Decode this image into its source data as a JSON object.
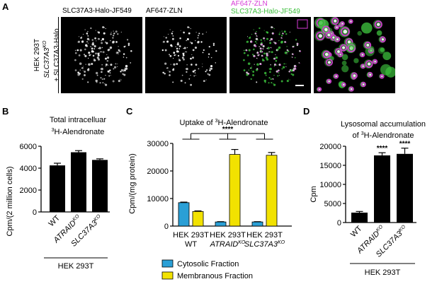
{
  "panelA": {
    "letter": "A",
    "row_label_lines": [
      "HEK 293T",
      "SLC37A3",
      "KO",
      "+ SLC37A3-Halo"
    ],
    "images": [
      {
        "label": "SLC37A3-Halo-JF549",
        "color": "#000000"
      },
      {
        "label": "AF647-ZLN",
        "color": "#000000"
      },
      {
        "label_top": "AF647-ZLN",
        "label_bottom": "SLC37A3-Halo-JF549",
        "color_top": "#d63ad6",
        "color_bottom": "#3cbf3c"
      },
      {
        "label": "",
        "color": "#000000"
      }
    ],
    "colors": {
      "green": "#3cbf3c",
      "magenta": "#d63ad6"
    }
  },
  "panelB": {
    "letter": "B",
    "title_line1": "Total intracelluar",
    "title_line2_pre": "3",
    "title_line2": "H-Alendronate",
    "ylabel": "Cpm/(2 million cells)",
    "yticks": [
      "0",
      "2000",
      "4000",
      "6000"
    ],
    "xlabels": [
      {
        "base": "WT",
        "sup": "",
        "italic": false
      },
      {
        "base": "ATRAID",
        "sup": "KO",
        "italic": true
      },
      {
        "base": "SLC37A3",
        "sup": "KO",
        "italic": true
      }
    ],
    "group_label": "HEK 293T"
  },
  "panelC": {
    "letter": "C",
    "title_pre": "Uptake of ",
    "title_sup": "3",
    "title": "H-Alendronate",
    "ylabel": "Cpm/(mg protein)",
    "yticks": [
      "0",
      "10000",
      "20000",
      "30000"
    ],
    "significance": "****",
    "group_labels": [
      {
        "line1": "HEK 293T",
        "line2": "WT",
        "sup": "",
        "italic": false
      },
      {
        "line1": "HEK 293T",
        "line2": "ATRAID",
        "sup": "KO",
        "italic": true
      },
      {
        "line1": "HEK 293T",
        "line2": "SLC37A3",
        "sup": "KO",
        "italic": true
      }
    ],
    "legend": [
      {
        "label": "Cytosolic Fraction",
        "color": "#2a9fd6"
      },
      {
        "label": "Membranous Fraction",
        "color": "#f2e200"
      }
    ]
  },
  "panelD": {
    "letter": "D",
    "title_line1": "Lysosomal accumulation",
    "title_line2_pre": "of ",
    "title_line2_sup": "3",
    "title_line2": "H-Alendronate",
    "ylabel": "Cpm",
    "yticks": [
      "0",
      "5000",
      "10000",
      "15000",
      "20000"
    ],
    "significance": [
      "****",
      "****"
    ],
    "xlabels": [
      {
        "base": "WT",
        "sup": "",
        "italic": false
      },
      {
        "base": "ATRAID",
        "sup": "KO",
        "italic": true
      },
      {
        "base": "SLC37A3",
        "sup": "KO",
        "italic": true
      }
    ],
    "group_label": "HEK 293T"
  },
  "chart_data": [
    {
      "type": "bar",
      "title": "Total intracelluar 3H-Alendronate",
      "ylabel": "Cpm/(2 million cells)",
      "categories": [
        "WT",
        "ATRAIDKO",
        "SLC37A3KO"
      ],
      "values": [
        4250,
        5450,
        4750
      ],
      "errors": [
        200,
        150,
        100
      ],
      "ylim": [
        0,
        6000
      ],
      "bar_color": "#000000"
    },
    {
      "type": "bar",
      "title": "Uptake of 3H-Alendronate",
      "ylabel": "Cpm/(mg protein)",
      "categories": [
        "HEK 293T WT",
        "HEK 293T ATRAIDKO",
        "HEK 293T SLC37A3KO"
      ],
      "series": [
        {
          "name": "Cytosolic Fraction",
          "values": [
            8500,
            1500,
            1500
          ],
          "errors": [
            200,
            100,
            100
          ],
          "color": "#2a9fd6"
        },
        {
          "name": "Membranous Fraction",
          "values": [
            5300,
            26000,
            25700
          ],
          "errors": [
            200,
            1800,
            1000
          ],
          "color": "#f2e200"
        }
      ],
      "ylim": [
        0,
        30000
      ]
    },
    {
      "type": "bar",
      "title": "Lysosomal accumulation of 3H-Alendronate",
      "ylabel": "Cpm",
      "categories": [
        "WT",
        "ATRAIDKO",
        "SLC37A3KO"
      ],
      "values": [
        2600,
        17600,
        18000
      ],
      "errors": [
        300,
        700,
        1500
      ],
      "ylim": [
        0,
        20000
      ],
      "bar_color": "#000000"
    }
  ]
}
